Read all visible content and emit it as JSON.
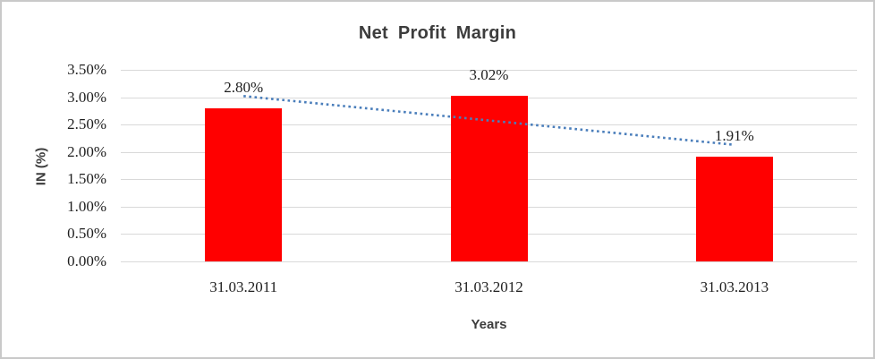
{
  "chart": {
    "title": "Net Profit Margin",
    "y_axis_title": "IN (%)",
    "x_axis_title": "Years"
  },
  "chart_data": {
    "type": "bar",
    "title": "Net Profit Margin",
    "xlabel": "Years",
    "ylabel": "IN (%)",
    "categories": [
      "31.03.2011",
      "31.03.2012",
      "31.03.2013"
    ],
    "values": [
      2.8,
      3.02,
      1.91
    ],
    "data_labels": [
      "2.80%",
      "3.02%",
      "1.91%"
    ],
    "y_ticks": [
      "0.00%",
      "0.50%",
      "1.00%",
      "1.50%",
      "2.00%",
      "2.50%",
      "3.00%",
      "3.50%"
    ],
    "ylim": [
      0,
      3.5
    ],
    "grid": true,
    "legend": false,
    "bar_color": "#ff0000",
    "trendline": {
      "type": "linear",
      "style": "dotted",
      "color": "#4a7ebb",
      "start_value": 3.02,
      "end_value": 2.13
    }
  }
}
